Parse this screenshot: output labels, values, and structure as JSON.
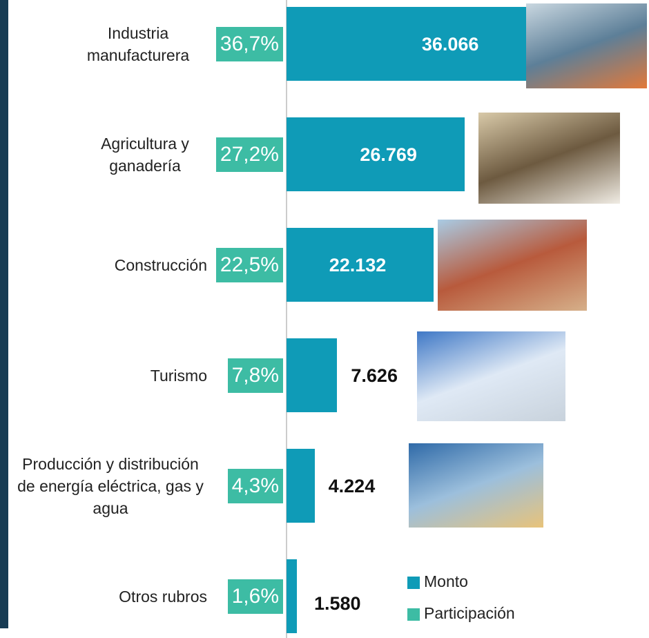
{
  "chart_data": {
    "type": "bar",
    "categories": [
      "Industria manufacturera",
      "Agricultura y ganadería",
      "Construcción",
      "Turismo",
      "Producción y distribución de energía eléctrica, gas y agua",
      "Otros rubros"
    ],
    "series": [
      {
        "name": "Monto",
        "color": "#0f9bb7",
        "values": [
          36066,
          26769,
          22132,
          7626,
          4224,
          1580
        ],
        "value_labels": [
          "36.066",
          "26.769",
          "22.132",
          "7.626",
          "4.224",
          "1.580"
        ]
      },
      {
        "name": "Participación",
        "color": "#3dbca4",
        "values": [
          36.7,
          27.2,
          22.5,
          7.8,
          4.3,
          1.6
        ],
        "value_labels": [
          "36,7%",
          "27,2%",
          "22,5%",
          "7,8%",
          "4,3%",
          "1,6%"
        ]
      }
    ],
    "xlim": [
      0,
      40000
    ]
  }
}
